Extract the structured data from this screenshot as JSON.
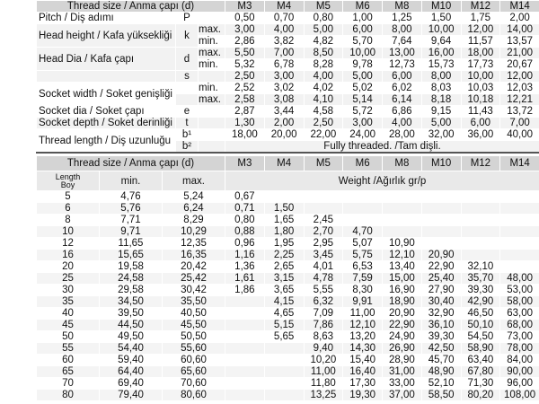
{
  "spec_table": {
    "header": {
      "label": "Thread size / Anma çapı (d)",
      "sizes": [
        "M3",
        "M4",
        "M5",
        "M6",
        "M8",
        "M10",
        "M12",
        "M14"
      ]
    },
    "groups": [
      {
        "label": "Pitch / Diş adımı",
        "symbol": "P",
        "rows": [
          {
            "values": [
              "0,50",
              "0,70",
              "0,80",
              "1,00",
              "1,25",
              "1,50",
              "1,75",
              "2,00"
            ]
          }
        ]
      },
      {
        "label": "Head height / Kafa yüksekliği",
        "symbol": "k",
        "rows": [
          {
            "limit": "max.",
            "values": [
              "3,00",
              "4,00",
              "5,00",
              "6,00",
              "8,00",
              "10,00",
              "12,00",
              "14,00"
            ]
          },
          {
            "limit": "min.",
            "values": [
              "2,86",
              "3,82",
              "4,82",
              "5,70",
              "7,64",
              "9,64",
              "11,57",
              "13,57"
            ]
          }
        ]
      },
      {
        "label": "Head Dia / Kafa çapı",
        "symbol": "d",
        "rows": [
          {
            "limit": "max.",
            "values": [
              "5,50",
              "7,00",
              "8,50",
              "10,00",
              "13,00",
              "16,00",
              "18,00",
              "21,00"
            ]
          },
          {
            "limit": "min.",
            "values": [
              "5,32",
              "6,78",
              "8,28",
              "9,78",
              "12,73",
              "15,73",
              "17,73",
              "20,67"
            ]
          }
        ]
      },
      {
        "symbol": "s",
        "rows": [
          {
            "values": [
              "2,50",
              "3,00",
              "4,00",
              "5,00",
              "6,00",
              "8,00",
              "10,00",
              "12,00"
            ]
          }
        ]
      },
      {
        "label": "Socket width / Soket genişliği",
        "rows": [
          {
            "limit": "min.",
            "values": [
              "2,52",
              "3,02",
              "4,02",
              "5,02",
              "6,02",
              "8,03",
              "10,03",
              "12,03"
            ]
          },
          {
            "limit": "max.",
            "values": [
              "2,58",
              "3,08",
              "4,10",
              "5,14",
              "6,14",
              "8,18",
              "10,18",
              "12,21"
            ]
          }
        ]
      },
      {
        "label": "Socket dia / Soket çapı",
        "symbol": "e",
        "rows": [
          {
            "values": [
              "2,87",
              "3,44",
              "4,58",
              "5,72",
              "6,86",
              "9,15",
              "11,43",
              "13,72"
            ]
          }
        ]
      },
      {
        "label": "Socket depth / Soket derinliği",
        "symbol": "t",
        "rows": [
          {
            "values": [
              "1,30",
              "2,00",
              "2,50",
              "3,00",
              "4,00",
              "5,00",
              "6,00",
              "7,00"
            ]
          }
        ]
      },
      {
        "label": "Thread length / Diş uzunluğu",
        "rows": [
          {
            "symbol": "b¹",
            "values": [
              "18,00",
              "20,00",
              "22,00",
              "24,00",
              "28,00",
              "32,00",
              "36,00",
              "40,00"
            ]
          },
          {
            "symbol": "b²",
            "note": "Fully threaded. /Tam dişli."
          }
        ]
      }
    ]
  },
  "weight_table": {
    "header": {
      "label": "Thread size / Anma çapı (d)",
      "sizes": [
        "M3",
        "M4",
        "M5",
        "M6",
        "M8",
        "M10",
        "M12",
        "M14"
      ]
    },
    "subheader": {
      "length": "Length",
      "length_tr": "Boy",
      "min": "min.",
      "max": "max.",
      "weight": "Weight /Ağırlık gr/p"
    },
    "rows": [
      {
        "length": "5",
        "min": "4,76",
        "max": "5,24",
        "weights": [
          "0,67",
          null,
          null,
          null,
          null,
          null,
          null,
          null
        ]
      },
      {
        "length": "6",
        "min": "5,76",
        "max": "6,24",
        "weights": [
          "0,71",
          "1,50",
          null,
          null,
          null,
          null,
          null,
          null
        ]
      },
      {
        "length": "8",
        "min": "7,71",
        "max": "8,29",
        "weights": [
          "0,80",
          "1,65",
          "2,45",
          null,
          null,
          null,
          null,
          null
        ]
      },
      {
        "length": "10",
        "min": "9,71",
        "max": "10,29",
        "weights": [
          "0,88",
          "1,80",
          "2,70",
          "4,70",
          null,
          null,
          null,
          null
        ]
      },
      {
        "length": "12",
        "min": "11,65",
        "max": "12,35",
        "weights": [
          "0,96",
          "1,95",
          "2,95",
          "5,07",
          "10,90",
          null,
          null,
          null
        ]
      },
      {
        "length": "16",
        "min": "15,65",
        "max": "16,35",
        "weights": [
          "1,16",
          "2,25",
          "3,45",
          "5,75",
          "12,10",
          "20,90",
          null,
          null
        ]
      },
      {
        "length": "20",
        "min": "19,58",
        "max": "20,42",
        "weights": [
          "1,36",
          "2,65",
          "4,01",
          "6,53",
          "13,40",
          "22,90",
          "32,10",
          null
        ]
      },
      {
        "length": "25",
        "min": "24,58",
        "max": "25,42",
        "weights": [
          "1,61",
          "3,15",
          "4,78",
          "7,59",
          "15,00",
          "25,40",
          "35,70",
          "48,00"
        ]
      },
      {
        "length": "30",
        "min": "29,58",
        "max": "30,42",
        "weights": [
          "1,86",
          "3,65",
          "5,55",
          "8,30",
          "16,90",
          "27,90",
          "39,30",
          "53,00"
        ]
      },
      {
        "length": "35",
        "min": "34,50",
        "max": "35,50",
        "weights": [
          null,
          "4,15",
          "6,32",
          "9,91",
          "18,90",
          "30,40",
          "42,90",
          "58,00"
        ]
      },
      {
        "length": "40",
        "min": "39,50",
        "max": "40,50",
        "weights": [
          null,
          "4,65",
          "7,09",
          "11,00",
          "20,90",
          "32,90",
          "46,50",
          "63,00"
        ]
      },
      {
        "length": "45",
        "min": "44,50",
        "max": "45,50",
        "weights": [
          null,
          "5,15",
          "7,86",
          "12,10",
          "22,90",
          "36,10",
          "50,10",
          "68,00"
        ]
      },
      {
        "length": "50",
        "min": "49,50",
        "max": "50,50",
        "weights": [
          null,
          "5,65",
          "8,63",
          "13,20",
          "24,90",
          "39,30",
          "54,50",
          "73,00"
        ]
      },
      {
        "length": "55",
        "min": "54,40",
        "max": "55,60",
        "weights": [
          null,
          null,
          "9,40",
          "14,30",
          "26,90",
          "42,50",
          "58,90",
          "78,00"
        ]
      },
      {
        "length": "60",
        "min": "59,40",
        "max": "60,60",
        "weights": [
          null,
          null,
          "10,20",
          "15,40",
          "28,90",
          "45,70",
          "63,40",
          "84,00"
        ]
      },
      {
        "length": "65",
        "min": "64,40",
        "max": "65,60",
        "weights": [
          null,
          null,
          "11,00",
          "16,40",
          "31,00",
          "48,90",
          "67,80",
          "90,00"
        ]
      },
      {
        "length": "70",
        "min": "69,40",
        "max": "70,60",
        "weights": [
          null,
          null,
          "11,80",
          "17,30",
          "33,00",
          "52,10",
          "71,30",
          "96,00"
        ]
      },
      {
        "length": "80",
        "min": "79,40",
        "max": "80,60",
        "weights": [
          null,
          null,
          "13,25",
          "19,30",
          "37,00",
          "58,50",
          "80,20",
          "108,00"
        ]
      }
    ]
  }
}
